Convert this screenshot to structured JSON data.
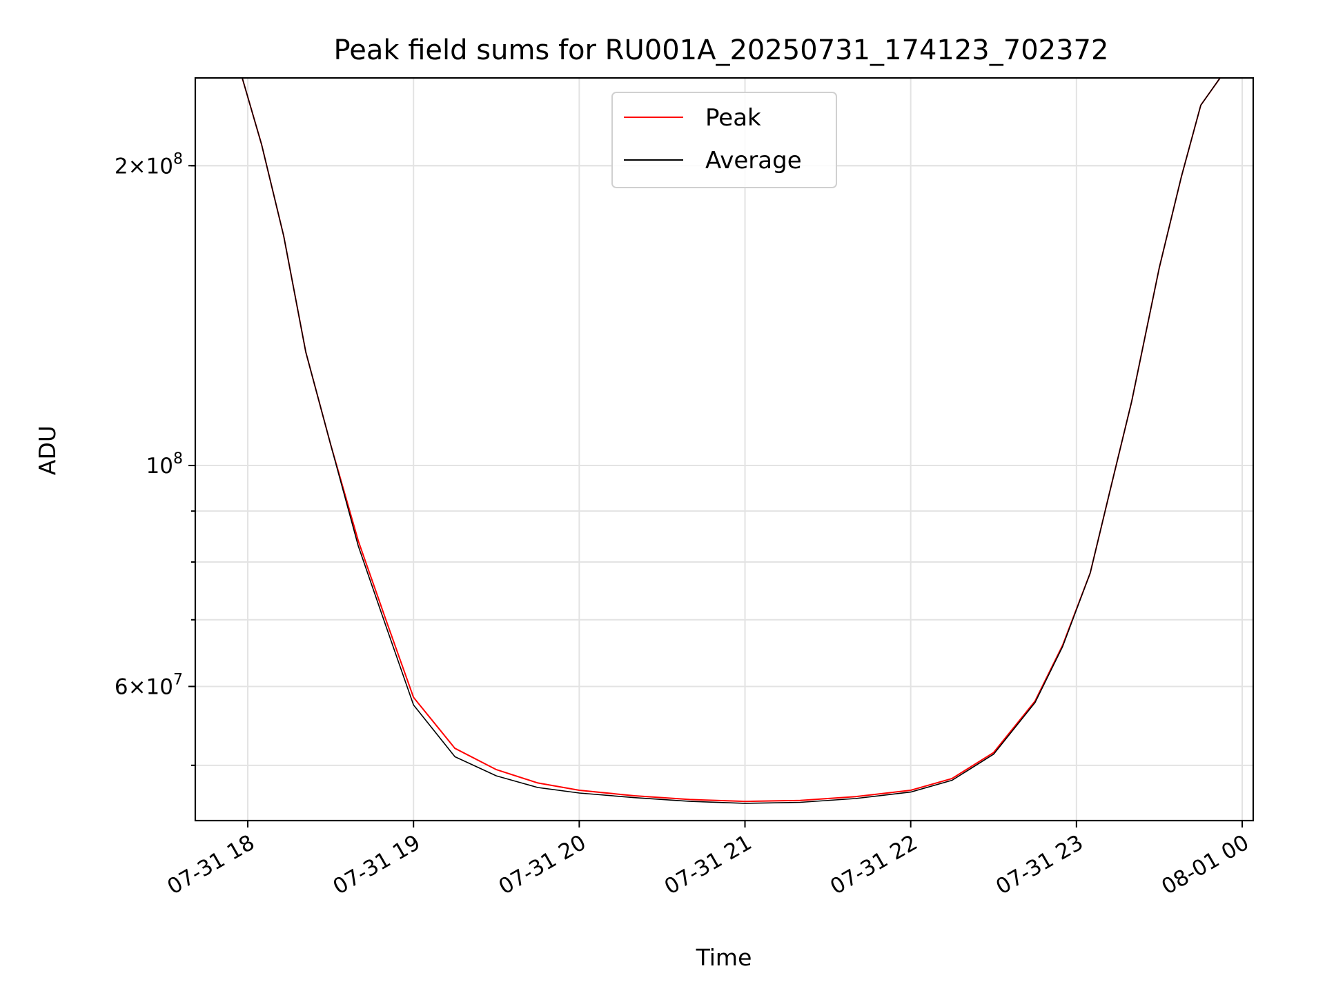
{
  "chart_data": {
    "type": "line",
    "title": "Peak field sums for RU001A_20250731_174123_702372",
    "xlabel": "Time",
    "ylabel": "ADU",
    "yscale": "log",
    "ylim": [
      44000000,
      245000000
    ],
    "xlim": [
      "2025-07-31T17:41",
      "2025-08-01T00:04"
    ],
    "grid": true,
    "legend_position": "upper center",
    "x_ticks": [
      {
        "value": "2025-07-31T18:00",
        "label": "07-31 18"
      },
      {
        "value": "2025-07-31T19:00",
        "label": "07-31 19"
      },
      {
        "value": "2025-07-31T20:00",
        "label": "07-31 20"
      },
      {
        "value": "2025-07-31T21:00",
        "label": "07-31 21"
      },
      {
        "value": "2025-07-31T22:00",
        "label": "07-31 22"
      },
      {
        "value": "2025-07-31T23:00",
        "label": "07-31 23"
      },
      {
        "value": "2025-08-01T00:00",
        "label": "08-01 00"
      }
    ],
    "y_major_ticks": [
      {
        "value": 100000000,
        "base": "10",
        "exp": "8",
        "mantissa": ""
      },
      {
        "value": 200000000,
        "base": "10",
        "exp": "8",
        "mantissa": "2"
      },
      {
        "value": 60000000,
        "base": "10",
        "exp": "7",
        "mantissa": "6"
      }
    ],
    "y_minor_ticks": [
      50000000,
      60000000,
      70000000,
      80000000,
      90000000,
      200000000
    ],
    "series": [
      {
        "name": "Peak",
        "color": "#ff0000",
        "x": [
          "2025-07-31T17:41",
          "2025-07-31T17:54",
          "2025-07-31T17:58",
          "2025-07-31T18:05",
          "2025-07-31T18:13",
          "2025-07-31T18:21",
          "2025-07-31T18:30",
          "2025-07-31T18:40",
          "2025-07-31T18:50",
          "2025-07-31T19:00",
          "2025-07-31T19:15",
          "2025-07-31T19:30",
          "2025-07-31T19:45",
          "2025-07-31T20:00",
          "2025-07-31T20:20",
          "2025-07-31T20:40",
          "2025-07-31T21:00",
          "2025-07-31T21:20",
          "2025-07-31T21:40",
          "2025-07-31T22:00",
          "2025-07-31T22:15",
          "2025-07-31T22:30",
          "2025-07-31T22:45",
          "2025-07-31T22:55",
          "2025-07-31T23:05",
          "2025-07-31T23:12",
          "2025-07-31T23:20",
          "2025-07-31T23:30",
          "2025-07-31T23:38",
          "2025-07-31T23:45",
          "2025-07-31T23:52",
          "2025-08-01T00:04"
        ],
        "y": [
          245000000,
          245000000,
          245000000,
          210000000,
          170000000,
          130000000,
          105000000,
          84000000,
          70000000,
          58500000,
          52000000,
          49500000,
          48000000,
          47200000,
          46600000,
          46200000,
          46000000,
          46100000,
          46500000,
          47200000,
          48500000,
          51500000,
          58000000,
          66000000,
          78000000,
          94000000,
          116000000,
          158000000,
          195000000,
          230000000,
          245000000,
          245000000
        ]
      },
      {
        "name": "Average",
        "color": "#000000",
        "x": [
          "2025-07-31T17:41",
          "2025-07-31T17:54",
          "2025-07-31T17:58",
          "2025-07-31T18:05",
          "2025-07-31T18:13",
          "2025-07-31T18:21",
          "2025-07-31T18:30",
          "2025-07-31T18:40",
          "2025-07-31T18:50",
          "2025-07-31T19:00",
          "2025-07-31T19:15",
          "2025-07-31T19:30",
          "2025-07-31T19:45",
          "2025-07-31T20:00",
          "2025-07-31T20:20",
          "2025-07-31T20:40",
          "2025-07-31T21:00",
          "2025-07-31T21:20",
          "2025-07-31T21:40",
          "2025-07-31T22:00",
          "2025-07-31T22:15",
          "2025-07-31T22:30",
          "2025-07-31T22:45",
          "2025-07-31T22:55",
          "2025-07-31T23:05",
          "2025-07-31T23:12",
          "2025-07-31T23:20",
          "2025-07-31T23:30",
          "2025-07-31T23:38",
          "2025-07-31T23:45",
          "2025-07-31T23:52",
          "2025-08-01T00:04"
        ],
        "y": [
          245000000,
          245000000,
          245000000,
          210000000,
          170000000,
          130000000,
          105000000,
          83000000,
          69000000,
          57500000,
          51000000,
          48800000,
          47500000,
          46900000,
          46400000,
          46000000,
          45800000,
          45900000,
          46300000,
          47000000,
          48300000,
          51300000,
          57800000,
          65800000,
          78000000,
          94000000,
          116000000,
          158000000,
          195000000,
          230000000,
          245000000,
          245000000
        ]
      }
    ]
  }
}
